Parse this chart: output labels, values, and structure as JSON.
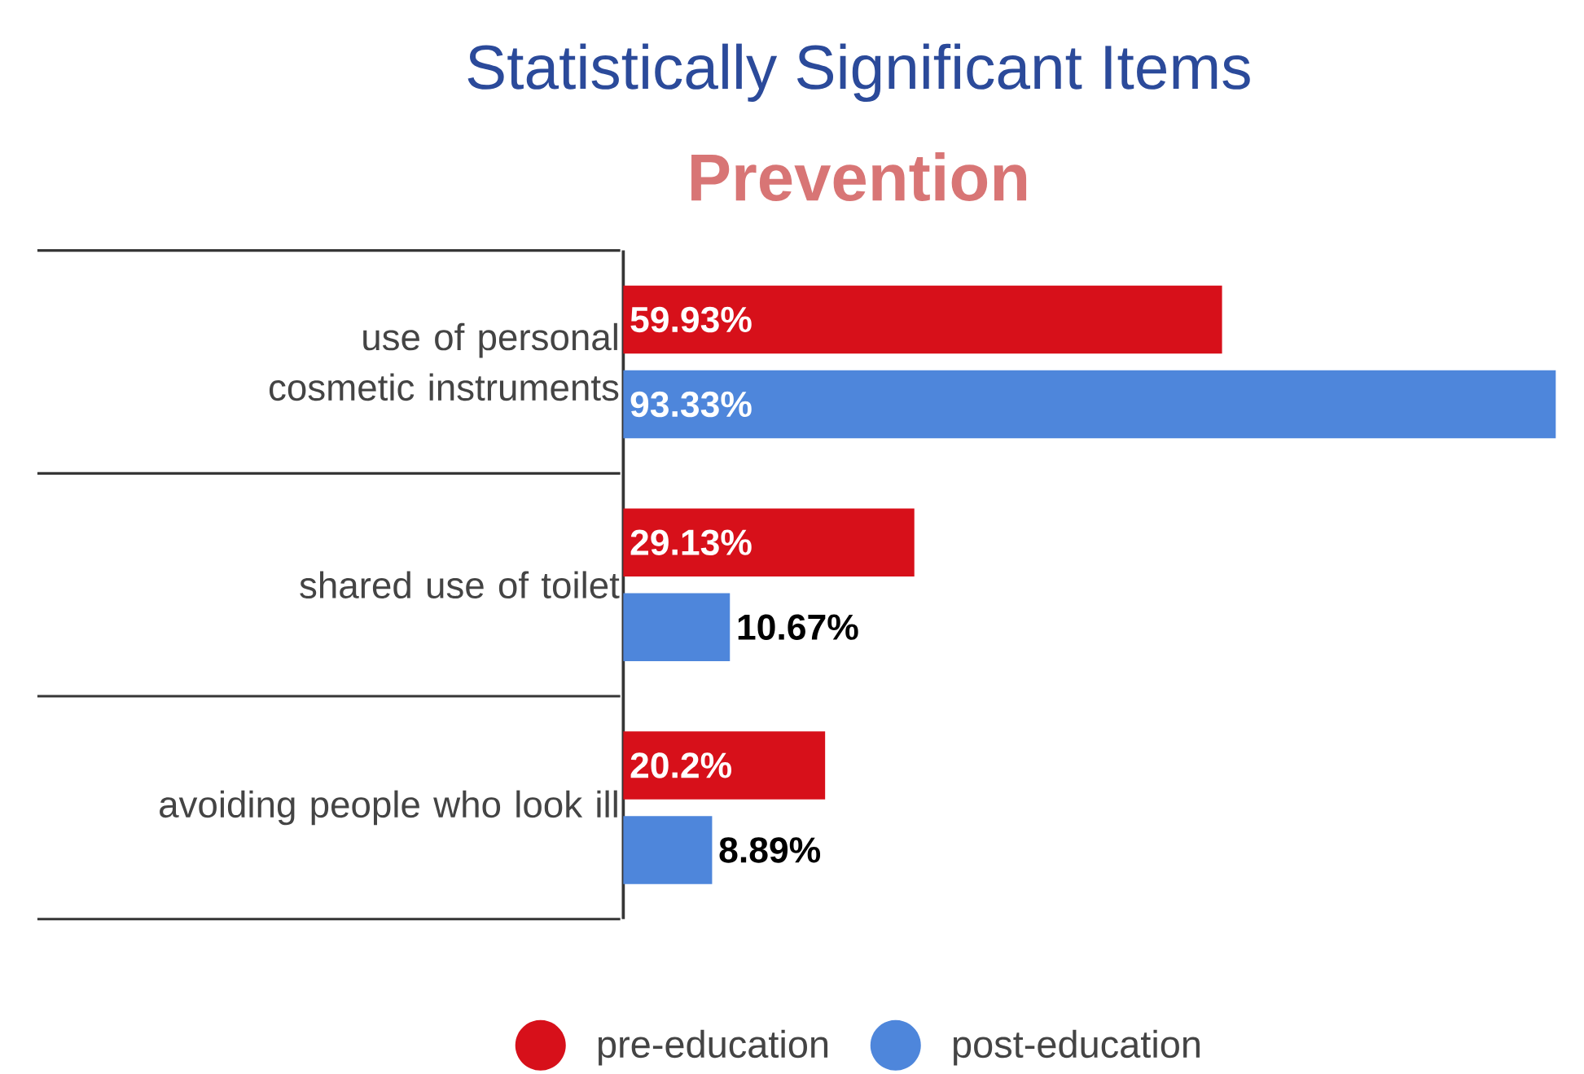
{
  "chart_data": {
    "type": "bar",
    "orientation": "horizontal",
    "title": "Statistically Significant Items",
    "subtitle": "Prevention",
    "categories": [
      "use of personal cosmetic instruments",
      "shared use of toilet",
      "avoiding people who look ill"
    ],
    "series": [
      {
        "name": "pre-education",
        "color": "#d7101a",
        "values": [
          59.93,
          29.13,
          20.2
        ],
        "value_labels": [
          "59.93%",
          "29.13%",
          "20.2%"
        ]
      },
      {
        "name": "post-education",
        "color": "#4e86db",
        "values": [
          93.33,
          10.67,
          8.89
        ],
        "value_labels": [
          "93.33%",
          "10.67%",
          "8.89%"
        ]
      }
    ],
    "legend": "bottom"
  }
}
